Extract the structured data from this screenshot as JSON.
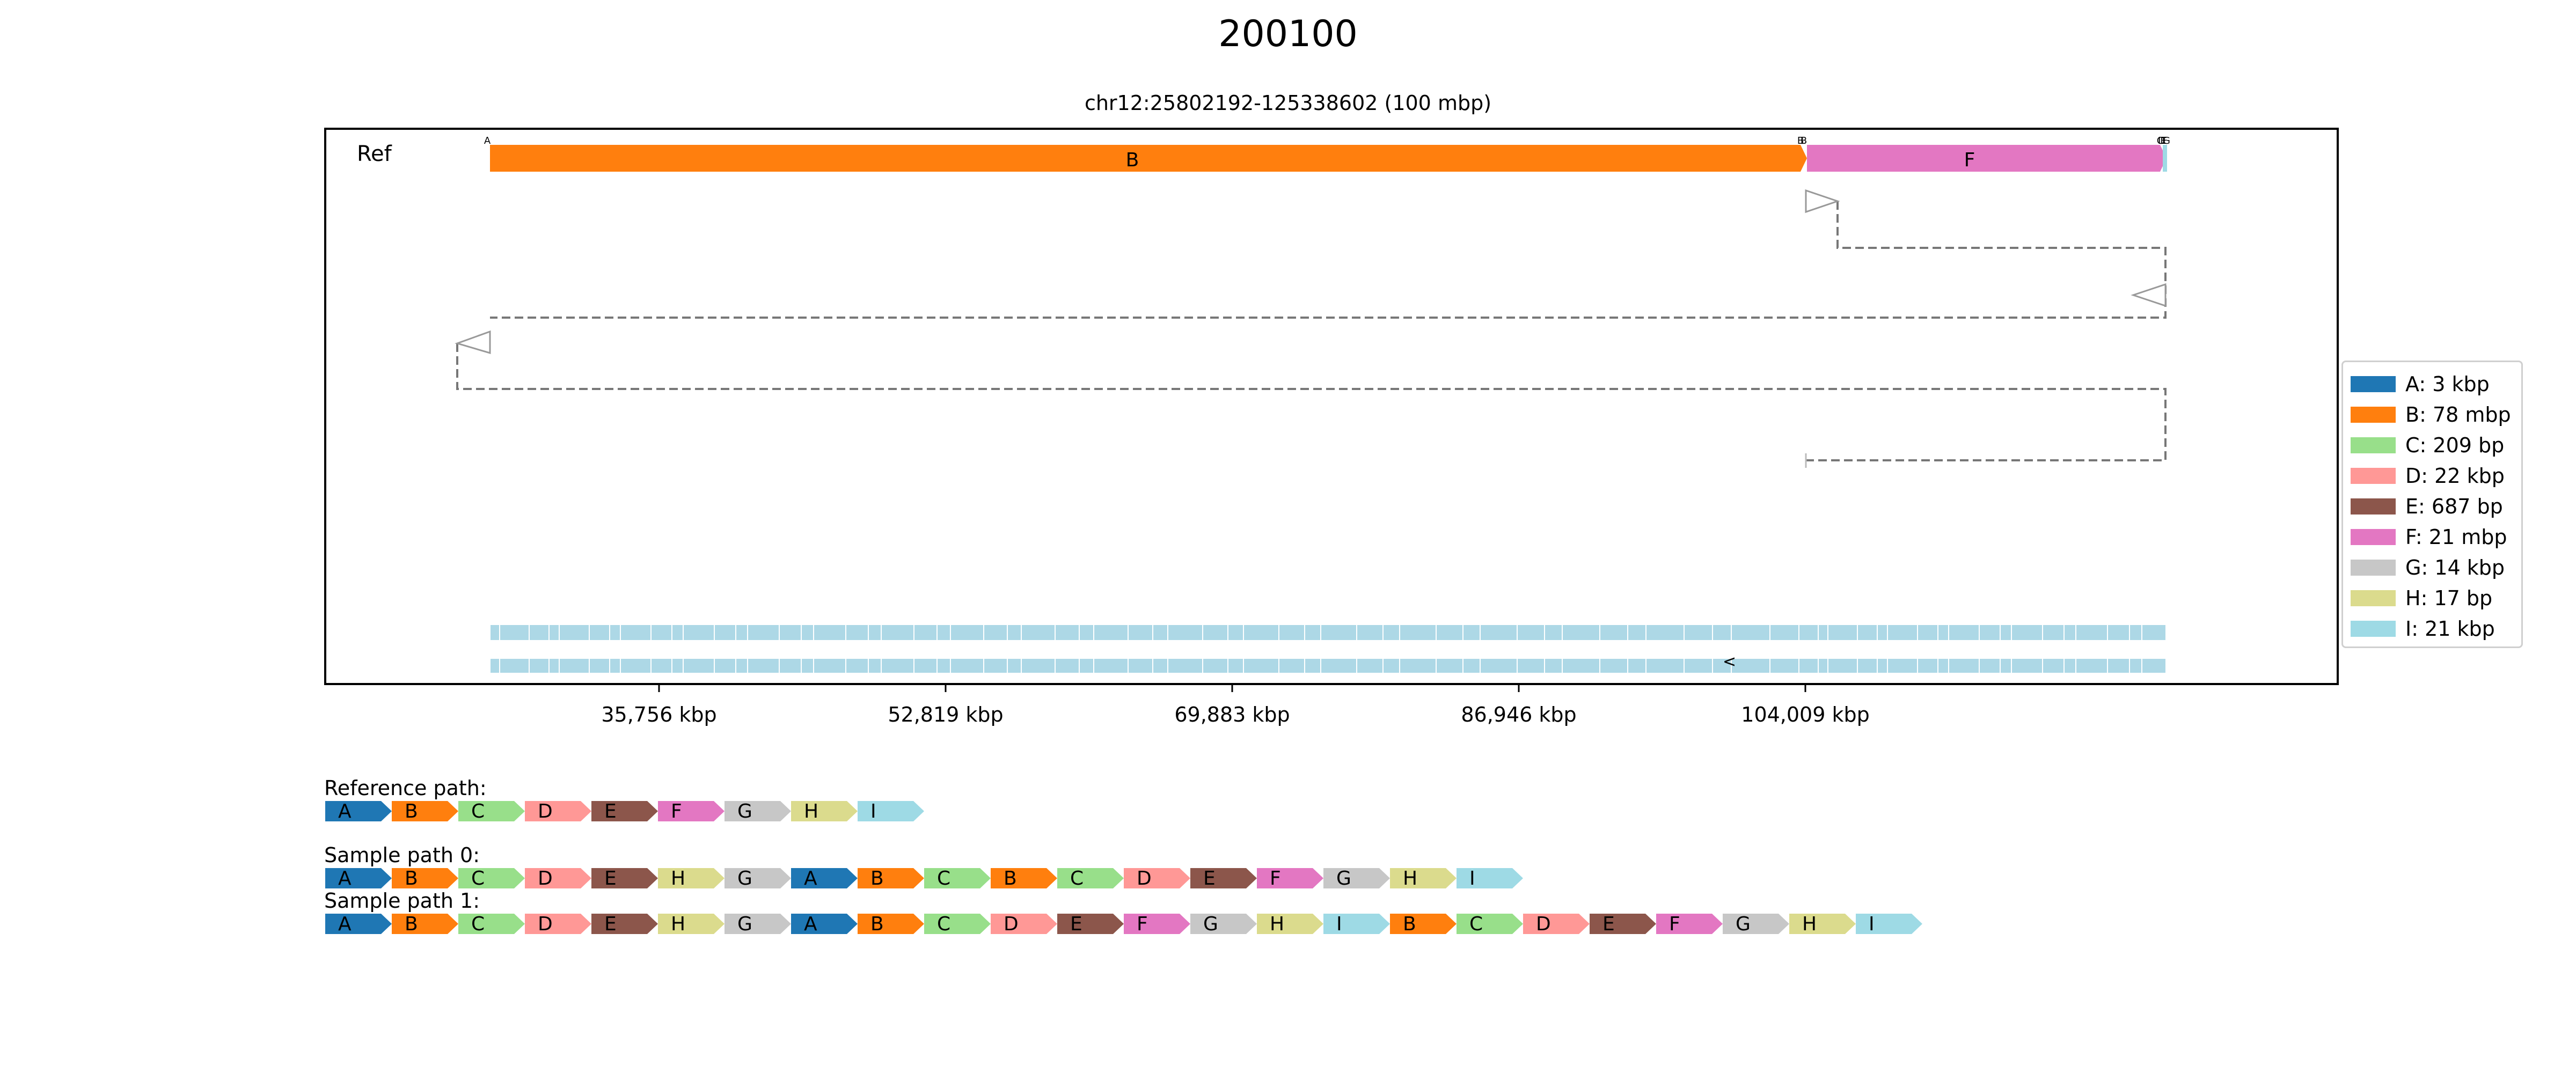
{
  "title": "200100",
  "subtitle": "chr12:25802192-125338602 (100 mbp)",
  "ref_label": "Ref",
  "ticks": [
    "35,756 kbp",
    "52,819 kbp",
    "69,883 kbp",
    "86,946 kbp",
    "104,009 kbp"
  ],
  "segment_colors": {
    "A": "#1f77b4",
    "B": "#ff7f0e",
    "C": "#98df8a",
    "D": "#ff9896",
    "E": "#8c564b",
    "F": "#e377c2",
    "G": "#c7c7c7",
    "H": "#dbdb8d",
    "I": "#9edae5"
  },
  "ref_segments": [
    {
      "id": "B",
      "label": "B"
    },
    {
      "id": "F",
      "label": "F"
    }
  ],
  "ref_tiny_labels": [
    "A",
    "B",
    "B",
    "C",
    "D",
    "E",
    "F",
    "G"
  ],
  "gene_label_marker": "<",
  "legend": [
    {
      "id": "A",
      "label": "A: 3 kbp"
    },
    {
      "id": "B",
      "label": "B: 78 mbp"
    },
    {
      "id": "C",
      "label": "C: 209 bp"
    },
    {
      "id": "D",
      "label": "D: 22 kbp"
    },
    {
      "id": "E",
      "label": "E: 687 bp"
    },
    {
      "id": "F",
      "label": "F: 21 mbp"
    },
    {
      "id": "G",
      "label": "G: 14 kbp"
    },
    {
      "id": "H",
      "label": "H: 17 bp"
    },
    {
      "id": "I",
      "label": "I: 21 kbp"
    }
  ],
  "paths": [
    {
      "label": "Reference path:",
      "segments": [
        "A",
        "B",
        "C",
        "D",
        "E",
        "F",
        "G",
        "H",
        "I"
      ]
    },
    {
      "label": "Sample path 0:",
      "segments": [
        "A",
        "B",
        "C",
        "D",
        "E",
        "H",
        "G",
        "A",
        "B",
        "C",
        "B",
        "C",
        "D",
        "E",
        "F",
        "G",
        "H",
        "I"
      ]
    },
    {
      "label": "Sample path 1:",
      "segments": [
        "A",
        "B",
        "C",
        "D",
        "E",
        "H",
        "G",
        "A",
        "B",
        "C",
        "D",
        "E",
        "F",
        "G",
        "H",
        "I",
        "B",
        "C",
        "D",
        "E",
        "F",
        "G",
        "H",
        "I"
      ]
    }
  ]
}
